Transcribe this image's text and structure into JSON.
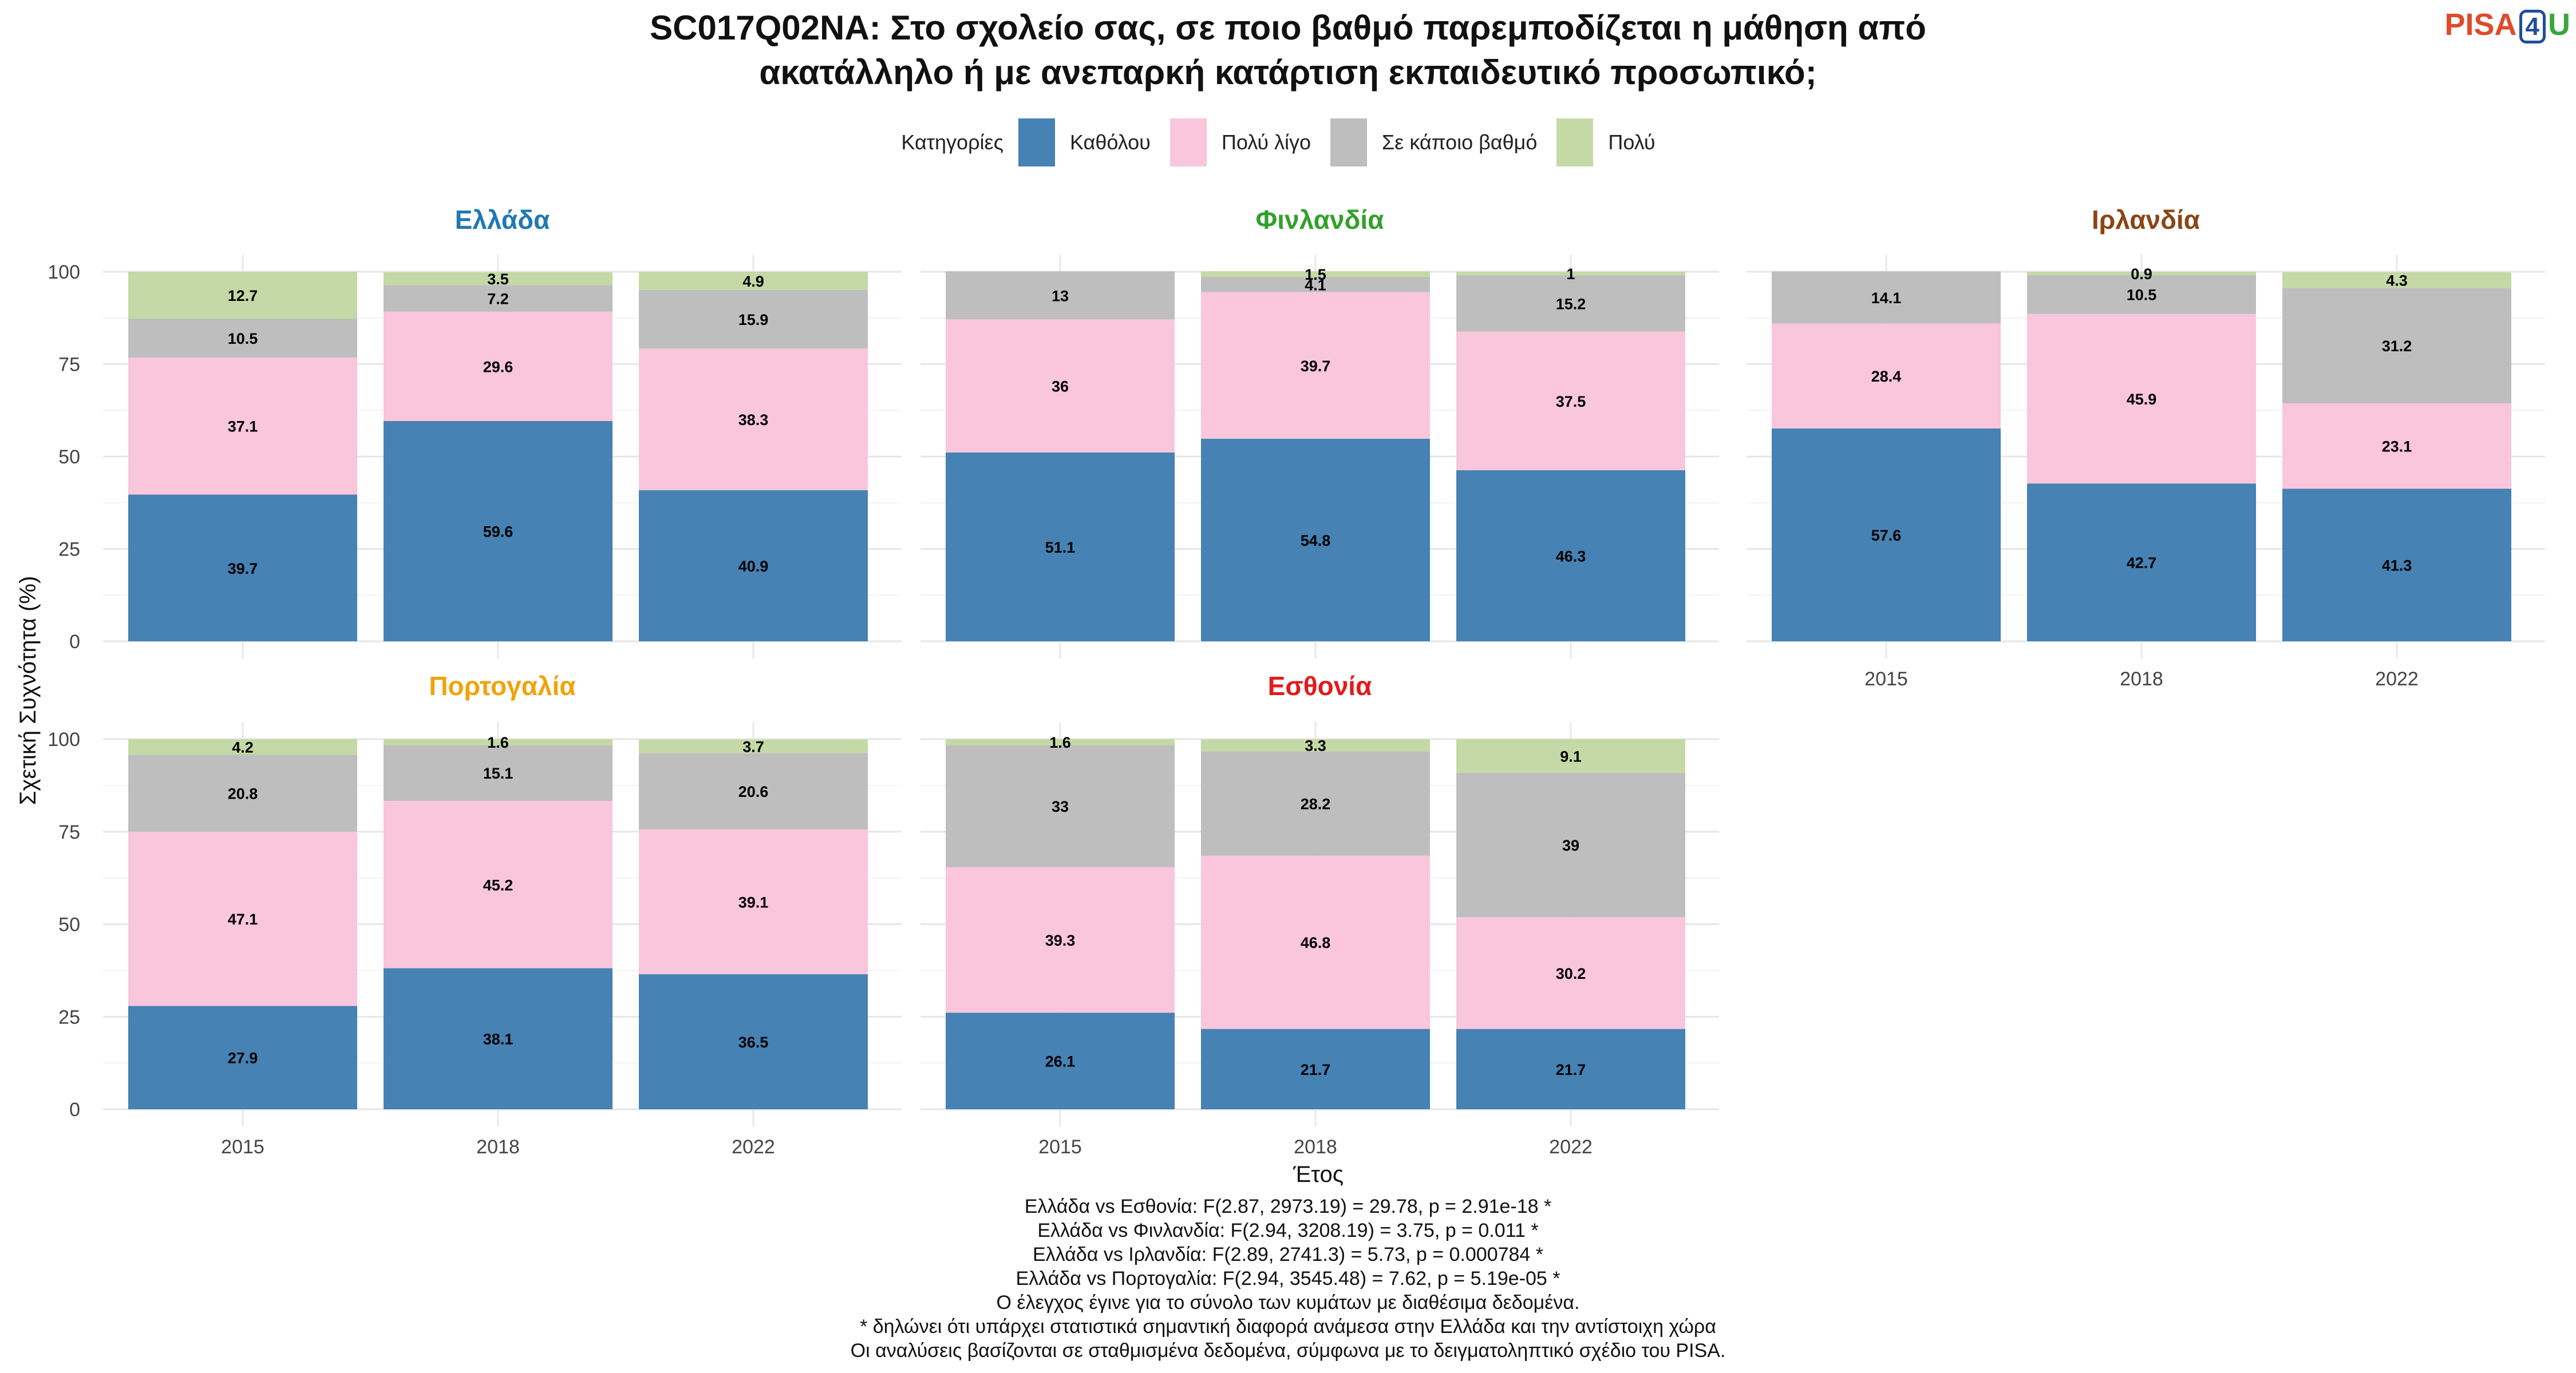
{
  "title_lines": [
    "SC017Q02NA: Στο σχολείο σας, σε ποιο βαθμό παρεμποδίζεται η μάθηση από",
    "ακατάλληλο ή με ανεπαρκή κατάρτιση εκπαιδευτικό προσωπικό;"
  ],
  "logo": {
    "pisa": "PISA",
    "four": "4",
    "u": "U"
  },
  "legend": {
    "title": "Κατηγορίες",
    "items": [
      {
        "label": "Καθόλου",
        "color": "#4682b4"
      },
      {
        "label": "Πολύ λίγο",
        "color": "#f9c6dc"
      },
      {
        "label": "Σε κάποιο βαθμό",
        "color": "#bebebe"
      },
      {
        "label": "Πολύ",
        "color": "#c4d9a5"
      }
    ]
  },
  "chart_data": {
    "type": "bar",
    "stacked": true,
    "xlabel": "Έτος",
    "ylabel": "Σχετική Συχνότητα (%)",
    "ylim": [
      0,
      100
    ],
    "yticks": [
      0,
      25,
      50,
      75,
      100
    ],
    "categories": [
      "2015",
      "2018",
      "2022"
    ],
    "series_names": [
      "Καθόλου",
      "Πολύ λίγο",
      "Σε κάποιο βαθμό",
      "Πολύ"
    ],
    "panels": [
      {
        "name": "Ελλάδα",
        "title_color": "#1f78b4",
        "values": [
          [
            39.7,
            37.1,
            10.5,
            12.7
          ],
          [
            59.6,
            29.6,
            7.2,
            3.5
          ],
          [
            40.9,
            38.3,
            15.9,
            4.9
          ]
        ]
      },
      {
        "name": "Φινλανδία",
        "title_color": "#33a02c",
        "values": [
          [
            51.1,
            36,
            13,
            0
          ],
          [
            54.8,
            39.7,
            4.1,
            1.5
          ],
          [
            46.3,
            37.5,
            15.2,
            1
          ]
        ]
      },
      {
        "name": "Ιρλανδία",
        "title_color": "#8b4513",
        "values": [
          [
            57.6,
            28.4,
            14.1,
            0
          ],
          [
            42.7,
            45.9,
            10.5,
            0.9
          ],
          [
            41.3,
            23.1,
            31.2,
            4.3
          ]
        ]
      },
      {
        "name": "Πορτογαλία",
        "title_color": "#f0a30a",
        "values": [
          [
            27.9,
            47.1,
            20.8,
            4.2
          ],
          [
            38.1,
            45.2,
            15.1,
            1.6
          ],
          [
            36.5,
            39.1,
            20.6,
            3.7
          ]
        ]
      },
      {
        "name": "Εσθονία",
        "title_color": "#e31a1c",
        "values": [
          [
            26.1,
            39.3,
            33,
            1.6
          ],
          [
            21.7,
            46.8,
            28.2,
            3.3
          ],
          [
            21.7,
            30.2,
            39,
            9.1
          ]
        ]
      }
    ]
  },
  "footnotes": [
    "Ελλάδα vs Εσθονία: F(2.87, 2973.19) = 29.78, p = 2.91e-18 *",
    "Ελλάδα vs Φινλανδία: F(2.94, 3208.19) = 3.75, p = 0.011 *",
    "Ελλάδα vs Ιρλανδία: F(2.89, 2741.3) = 5.73, p = 0.000784 *",
    "Ελλάδα vs Πορτογαλία: F(2.94, 3545.48) = 7.62, p = 5.19e-05 *",
    "Ο έλεγχος έγινε για το σύνολο των κυμάτων με διαθέσιμα δεδομένα.",
    "* δηλώνει ότι υπάρχει στατιστικά σημαντική διαφορά ανάμεσα στην Ελλάδα και την αντίστοιχη χώρα",
    "Οι αναλύσεις βασίζονται σε σταθμισμένα δεδομένα, σύμφωνα με το δειγματοληπτικό σχέδιο του PISA."
  ]
}
